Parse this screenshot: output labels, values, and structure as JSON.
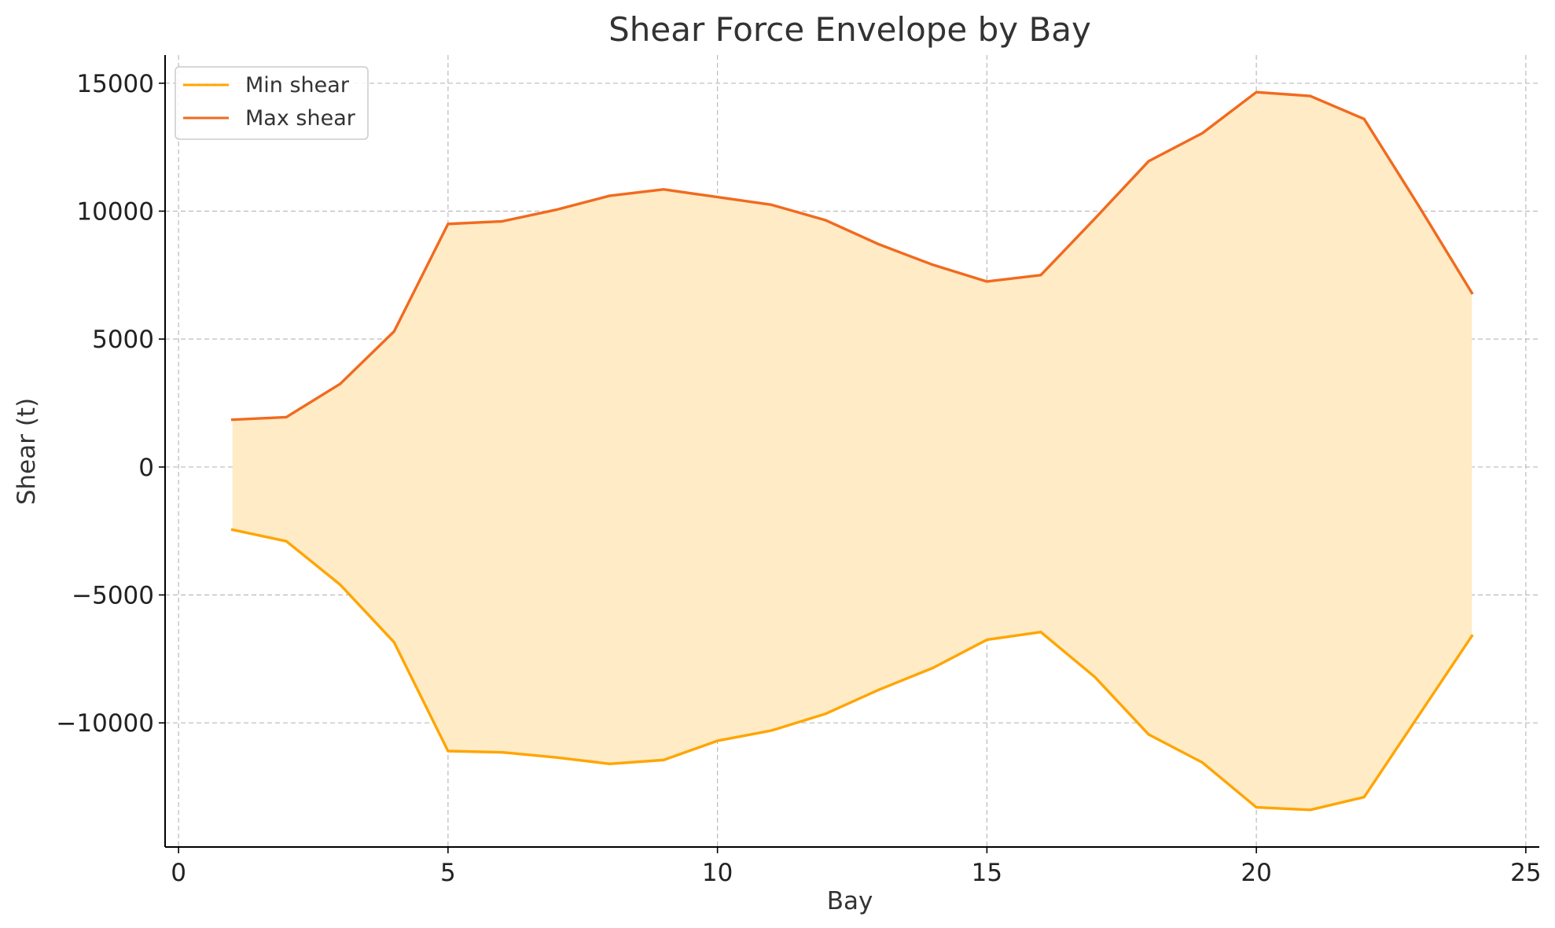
{
  "chart_data": {
    "type": "area",
    "title": "Shear Force Envelope by Bay",
    "xlabel": "Bay",
    "ylabel": "Shear (t)",
    "x": [
      1,
      2,
      3,
      4,
      5,
      6,
      7,
      8,
      9,
      10,
      11,
      12,
      13,
      14,
      15,
      16,
      17,
      18,
      19,
      20,
      21,
      22,
      23,
      24
    ],
    "series": [
      {
        "name": "Min shear",
        "color": "#FFA500",
        "values": [
          -2450,
          -2900,
          -4600,
          -6850,
          -11100,
          -11150,
          -11350,
          -11600,
          -11450,
          -10700,
          -10300,
          -9650,
          -8700,
          -7850,
          -6750,
          -6450,
          -8200,
          -10450,
          -11550,
          -13300,
          -13400,
          -12900,
          -9750,
          -6600
        ]
      },
      {
        "name": "Max shear",
        "color": "#F16A1F",
        "values": [
          1850,
          1950,
          3250,
          5300,
          9500,
          9600,
          10050,
          10600,
          10850,
          10550,
          10250,
          9650,
          8700,
          7900,
          7250,
          7500,
          9700,
          11950,
          13050,
          14650,
          14500,
          13600,
          10250,
          6800
        ]
      }
    ],
    "fill_between": {
      "color": "#FFEBC6"
    },
    "xlim": [
      -0.25,
      25.25
    ],
    "ylim": [
      -14850,
      16100
    ],
    "xticks": [
      0,
      5,
      10,
      15,
      20,
      25
    ],
    "yticks": [
      15000,
      10000,
      5000,
      0,
      -5000,
      -10000
    ],
    "ytick_labels": [
      "15000",
      "10000",
      "5000",
      "0",
      "−5000",
      "−10000"
    ],
    "grid": true,
    "legend_position": "upper-left"
  }
}
